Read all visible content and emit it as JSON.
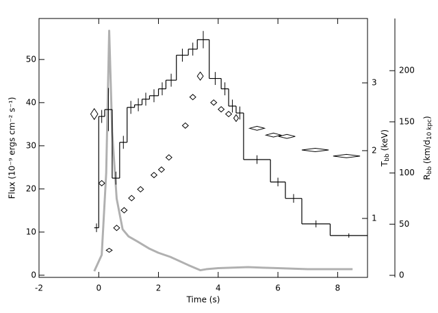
{
  "chart_data": {
    "type": "composite",
    "xlabel": "Time (s)",
    "ylabel": "Flux (10⁻⁹ ergs cm⁻² s⁻¹)",
    "y2label": [
      "T",
      "bb",
      " (keV)"
    ],
    "y3label": [
      "R",
      "bb",
      " (km/d",
      "10 kpc",
      ")"
    ],
    "xlim": [
      -2,
      9
    ],
    "xticks": [
      -2,
      0,
      2,
      4,
      6,
      8
    ],
    "ylim": [
      -0.5,
      59.5
    ],
    "yticks": [
      0,
      10,
      20,
      30,
      40,
      50
    ],
    "y2lim": [
      0.13,
      3.95
    ],
    "y2ticks": [
      1,
      2,
      3
    ],
    "y3lim": [
      -2,
      251
    ],
    "y3ticks": [
      0,
      50,
      100,
      150,
      200
    ],
    "series": [
      {
        "type": "step",
        "color": "#000000",
        "bins": [
          -0.15,
          0,
          0.2,
          0.45,
          0.7,
          0.95,
          1.2,
          1.45,
          1.7,
          2.0,
          2.25,
          2.6,
          3.0,
          3.3,
          3.7,
          4.1,
          4.35,
          4.6,
          4.85,
          5.75,
          6.25,
          6.8,
          7.75,
          9.0
        ],
        "values": [
          11,
          36.8,
          38.4,
          22.5,
          30.8,
          38.9,
          39.5,
          40.8,
          41.6,
          43.2,
          45.2,
          51,
          52.4,
          54.6,
          45.6,
          43.2,
          39.2,
          37.6,
          26.8,
          21.6,
          17.8,
          11.9,
          9.2
        ],
        "errors": [
          1,
          1.5,
          5,
          1.5,
          1.5,
          1.5,
          1.5,
          1.5,
          1.5,
          1.5,
          1.5,
          1.5,
          1.5,
          2,
          1.5,
          1.5,
          1.5,
          1.5,
          1,
          1,
          1,
          0.8,
          0.5
        ]
      },
      {
        "type": "diamond",
        "axis": "y2",
        "color": "#000000",
        "x": [
          -0.15,
          0.1,
          0.35,
          0.6,
          0.85,
          1.1,
          1.4,
          1.85,
          2.1,
          2.35,
          2.9,
          3.15,
          3.4,
          3.85,
          4.1,
          4.35,
          4.6,
          5.3,
          5.85,
          6.3,
          7.25,
          8.3
        ],
        "values": [
          2.54,
          1.52,
          0.53,
          0.86,
          1.12,
          1.3,
          1.43,
          1.64,
          1.72,
          1.9,
          2.37,
          2.79,
          3.1,
          2.71,
          2.61,
          2.54,
          2.48,
          2.33,
          2.23,
          2.21,
          2.01,
          1.92
        ],
        "xerr": [
          0.12,
          0.1,
          0.1,
          0.1,
          0.1,
          0.1,
          0.1,
          0.1,
          0.1,
          0.1,
          0.1,
          0.1,
          0.1,
          0.1,
          0.1,
          0.1,
          0.08,
          0.25,
          0.25,
          0.28,
          0.45,
          0.45
        ],
        "yerr": [
          0.08,
          0.04,
          0.03,
          0.04,
          0.04,
          0.04,
          0.04,
          0.04,
          0.04,
          0.04,
          0.04,
          0.04,
          0.06,
          0.04,
          0.04,
          0.04,
          0.05,
          0.03,
          0.03,
          0.03,
          0.025,
          0.025
        ]
      },
      {
        "type": "line",
        "axis": "y3",
        "color": "#b0b0b0",
        "x": [
          -0.15,
          0.1,
          0.25,
          0.35,
          0.45,
          0.6,
          0.8,
          1.0,
          1.3,
          1.7,
          2.0,
          2.4,
          3.0,
          3.4,
          3.6,
          4.0,
          5.0,
          6.0,
          7.0,
          8.0,
          8.5
        ],
        "values": [
          4,
          20,
          100,
          239,
          140,
          75,
          45,
          38,
          33,
          26,
          22,
          18,
          10,
          5,
          6,
          7,
          8,
          7,
          6,
          6,
          6
        ]
      }
    ]
  }
}
